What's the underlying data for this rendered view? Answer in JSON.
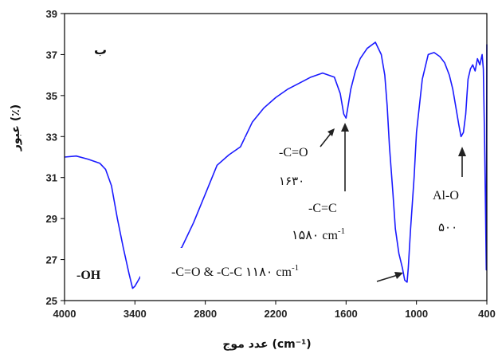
{
  "chart_data": {
    "type": "line",
    "panel_label": "ب",
    "ylabel": "عبور (٪)",
    "xlabel": "عدد موج (cm⁻¹)",
    "xlim": [
      4000,
      400
    ],
    "ylim": [
      25,
      39
    ],
    "x_ticks": [
      "4000",
      "3400",
      "2800",
      "2200",
      "1600",
      "1000",
      "400"
    ],
    "y_ticks": [
      "25",
      "27",
      "29",
      "31",
      "33",
      "35",
      "37",
      "39"
    ],
    "grid": false,
    "line_color": "#1a1aff",
    "series": [
      {
        "name": "",
        "x": [
          4000,
          3900,
          3800,
          3700,
          3650,
          3600,
          3550,
          3500,
          3450,
          3420,
          3400,
          3350,
          3300,
          3250,
          3200,
          3150,
          3100,
          3000,
          2900,
          2800,
          2700,
          2600,
          2500,
          2400,
          2300,
          2200,
          2100,
          2000,
          1900,
          1800,
          1700,
          1650,
          1620,
          1600,
          1580,
          1560,
          1520,
          1480,
          1420,
          1350,
          1300,
          1270,
          1250,
          1230,
          1200,
          1180,
          1150,
          1120,
          1100,
          1080,
          1070,
          1050,
          1020,
          1000,
          950,
          900,
          850,
          800,
          760,
          720,
          690,
          660,
          640,
          620,
          600,
          580,
          570,
          560,
          540,
          520,
          500,
          480,
          460,
          440,
          430,
          420,
          410,
          405,
          400
        ],
        "y": [
          32.0,
          32.05,
          31.9,
          31.7,
          31.4,
          30.6,
          29.0,
          27.6,
          26.3,
          25.6,
          25.7,
          26.2,
          26.0,
          26.2,
          26.5,
          26.8,
          27.0,
          27.6,
          28.8,
          30.2,
          31.6,
          32.1,
          32.5,
          33.7,
          34.4,
          34.9,
          35.3,
          35.6,
          35.9,
          36.1,
          35.9,
          35.1,
          34.1,
          33.9,
          34.6,
          35.3,
          36.2,
          36.8,
          37.3,
          37.6,
          37.0,
          36.0,
          34.5,
          32.5,
          30.2,
          28.5,
          27.3,
          26.6,
          26.0,
          25.9,
          26.6,
          28.5,
          31.0,
          33.2,
          35.8,
          37.0,
          37.1,
          36.9,
          36.6,
          36.0,
          35.3,
          34.3,
          33.6,
          33.0,
          33.2,
          34.1,
          35.0,
          35.8,
          36.3,
          36.5,
          36.2,
          36.8,
          36.5,
          37.0,
          36.3,
          33.0,
          29.0,
          26.5,
          37.5
        ]
      }
    ],
    "annotations": {
      "oh": "-OH",
      "co_label": "-C=O",
      "co_value": "۱۶۳۰",
      "cc_label": "-C=C",
      "cc_value": "۱۵۸۰ cm",
      "cc_unit_exp": "-1",
      "alo_label": "Al-O",
      "alo_value": "۵۰۰",
      "cocc_label": "-C=O & -C-C  ۱۱۸۰ cm",
      "cocc_unit_exp": "-1"
    }
  }
}
